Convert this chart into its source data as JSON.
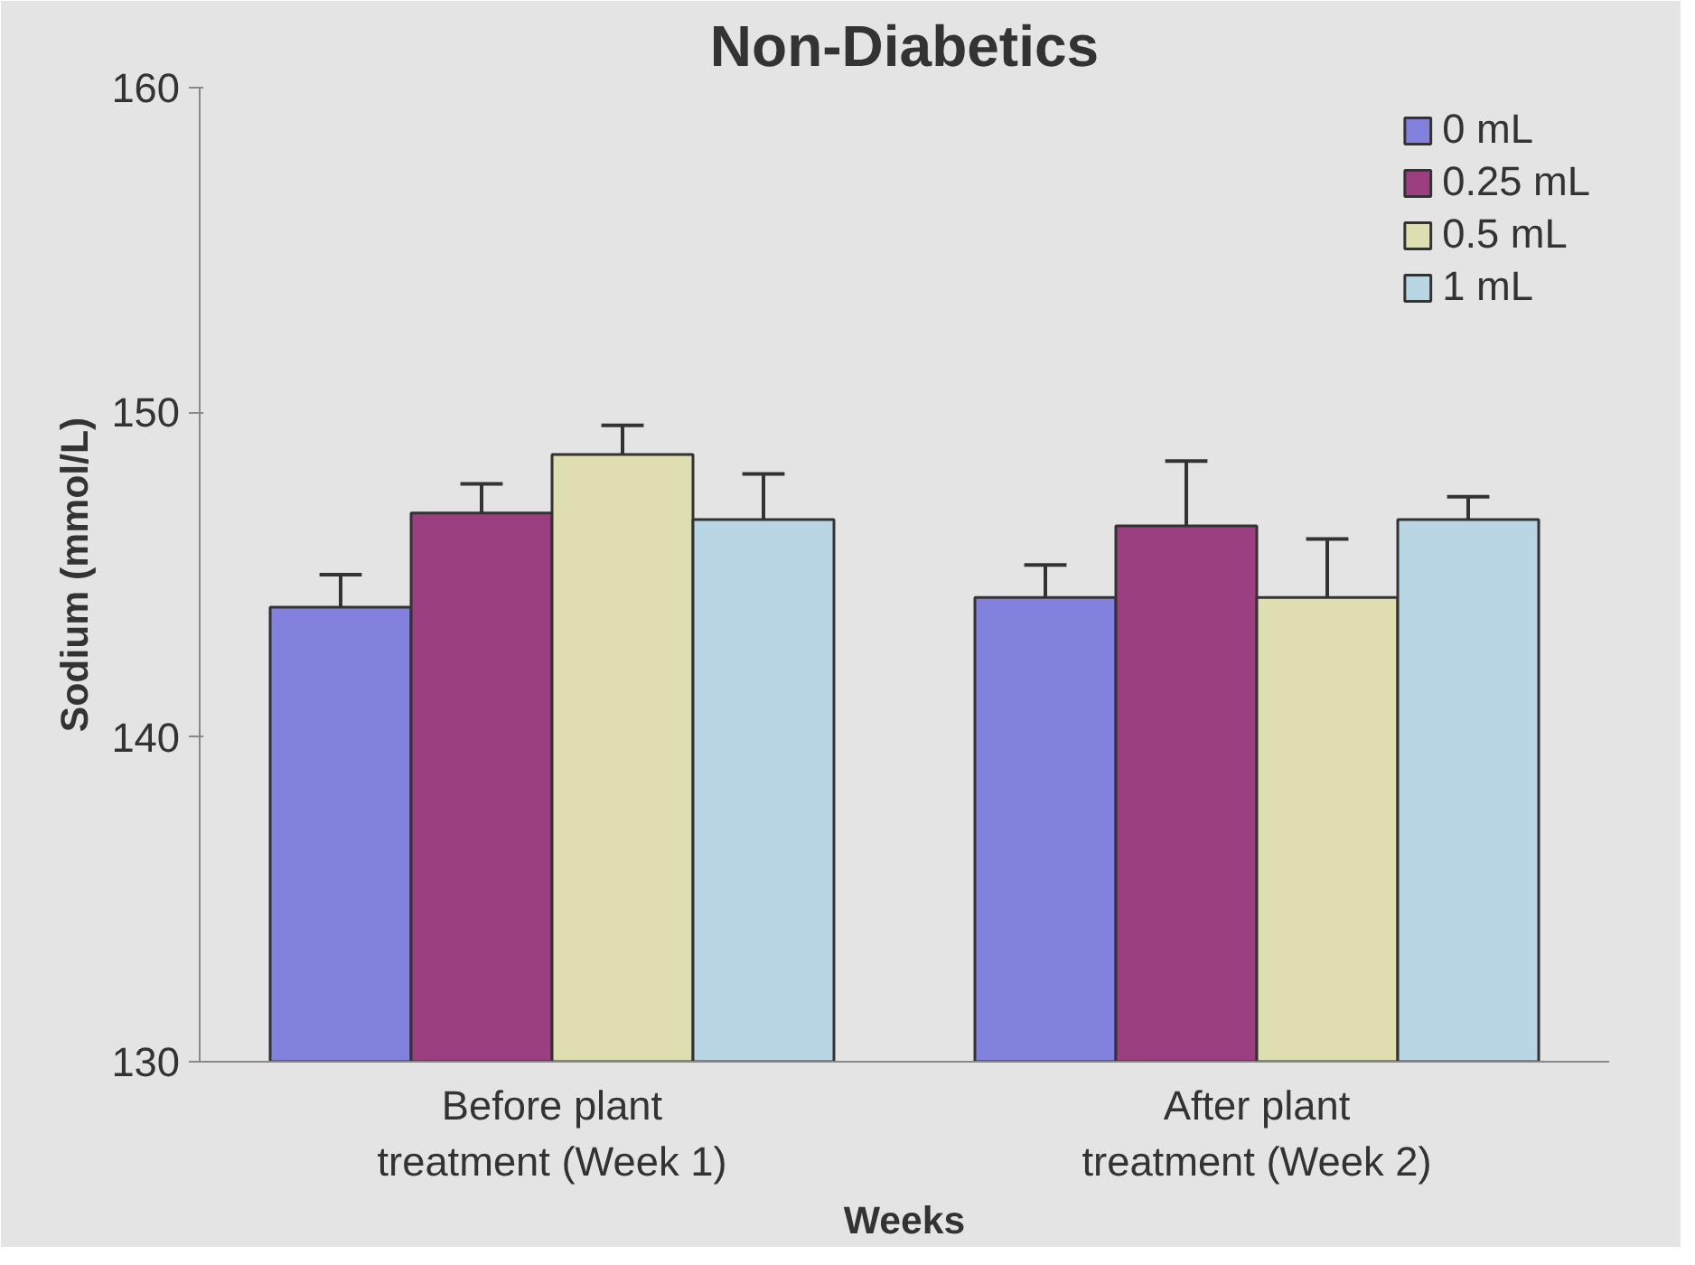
{
  "chart_data": {
    "type": "bar",
    "title": "Non-Diabetics",
    "xlabel": "Weeks",
    "ylabel": "Sodium (mmol/L)",
    "categories": [
      "Before plant treatment (Week 1)",
      "After plant treatment (Week 2)"
    ],
    "series": [
      {
        "name": "0 mL",
        "color": "#8282de",
        "values": [
          144.0,
          144.3
        ],
        "errors": [
          1.0,
          1.0
        ]
      },
      {
        "name": "0.25 mL",
        "color": "#9b3f80",
        "values": [
          146.9,
          146.5
        ],
        "errors": [
          0.9,
          2.0
        ]
      },
      {
        "name": "0.5 mL",
        "color": "#dedeb0",
        "values": [
          148.7,
          144.3
        ],
        "errors": [
          0.9,
          1.8
        ]
      },
      {
        "name": "1 mL",
        "color": "#b8d6e4",
        "values": [
          146.7,
          146.7
        ],
        "errors": [
          1.4,
          0.7
        ]
      }
    ],
    "ylim": [
      130,
      160
    ],
    "yticks": [
      130,
      140,
      150,
      160
    ],
    "legend": "top right"
  }
}
